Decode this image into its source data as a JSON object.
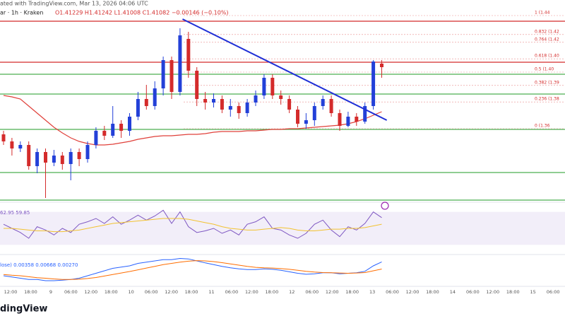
{
  "header": {
    "line1": "ated with TradingView.com, Mar 13, 2026 04:06 UTC",
    "symbol": "ar · 1h · Kraken",
    "ohlc": "O1.41229 H1.41242 L1.41008 C1.41082 −0.00146 (−0.10%)",
    "logo": "dingView"
  },
  "chart_data": {
    "type": "candlestick",
    "ylim": [
      1.306,
      1.451
    ],
    "up_color": "#2340d8",
    "down_color": "#d42b2b",
    "candles": {
      "open": [
        1.356,
        1.351,
        1.346,
        1.3485,
        1.3335,
        1.3435,
        1.336,
        1.341,
        1.335,
        1.3435,
        1.3385,
        1.3485,
        1.3585,
        1.355,
        1.3635,
        1.3585,
        1.3685,
        1.381,
        1.376,
        1.3885,
        1.4085,
        1.386,
        1.4235,
        1.401,
        1.381,
        1.3785,
        1.381,
        1.3735,
        1.376,
        1.371,
        1.3785,
        1.3835,
        1.396,
        1.3835,
        1.381,
        1.3735,
        1.3635,
        1.366,
        1.376,
        1.381,
        1.371,
        1.362,
        1.3685,
        1.365,
        1.376,
        1.406
      ],
      "high": [
        1.3585,
        1.3535,
        1.351,
        1.351,
        1.346,
        1.346,
        1.345,
        1.3435,
        1.346,
        1.346,
        1.351,
        1.361,
        1.362,
        1.376,
        1.366,
        1.371,
        1.386,
        1.391,
        1.3935,
        1.411,
        1.411,
        1.431,
        1.4285,
        1.4035,
        1.386,
        1.385,
        1.3835,
        1.381,
        1.3785,
        1.381,
        1.387,
        1.3985,
        1.3985,
        1.387,
        1.3835,
        1.376,
        1.371,
        1.3785,
        1.3835,
        1.3835,
        1.3735,
        1.372,
        1.371,
        1.3785,
        1.4085,
        1.4085
      ],
      "low": [
        1.3485,
        1.341,
        1.3435,
        1.331,
        1.3285,
        1.311,
        1.3335,
        1.331,
        1.3235,
        1.3335,
        1.336,
        1.346,
        1.352,
        1.3535,
        1.3535,
        1.355,
        1.366,
        1.3735,
        1.3735,
        1.3835,
        1.381,
        1.3835,
        1.396,
        1.376,
        1.3735,
        1.375,
        1.371,
        1.3685,
        1.367,
        1.3685,
        1.376,
        1.381,
        1.381,
        1.377,
        1.371,
        1.361,
        1.36,
        1.362,
        1.3735,
        1.3685,
        1.3585,
        1.361,
        1.362,
        1.3635,
        1.3735,
        1.396
      ],
      "close": [
        1.351,
        1.346,
        1.3485,
        1.3335,
        1.3435,
        1.336,
        1.341,
        1.335,
        1.3435,
        1.3385,
        1.3485,
        1.3585,
        1.355,
        1.3635,
        1.3585,
        1.3685,
        1.381,
        1.376,
        1.3885,
        1.4085,
        1.386,
        1.426,
        1.401,
        1.381,
        1.3785,
        1.381,
        1.3735,
        1.376,
        1.371,
        1.3785,
        1.3835,
        1.396,
        1.3835,
        1.381,
        1.3735,
        1.3635,
        1.366,
        1.376,
        1.381,
        1.371,
        1.362,
        1.3685,
        1.365,
        1.376,
        1.4075,
        1.4035
      ]
    },
    "ma": {
      "color": "#e0403a",
      "values": [
        1.3835,
        1.3825,
        1.381,
        1.376,
        1.371,
        1.366,
        1.361,
        1.357,
        1.3535,
        1.351,
        1.3495,
        1.3485,
        1.3485,
        1.349,
        1.35,
        1.351,
        1.3525,
        1.3535,
        1.3545,
        1.355,
        1.355,
        1.3555,
        1.356,
        1.356,
        1.3565,
        1.3575,
        1.358,
        1.358,
        1.358,
        1.3585,
        1.3585,
        1.359,
        1.3595,
        1.3595,
        1.36,
        1.36,
        1.3605,
        1.361,
        1.3615,
        1.362,
        1.3625,
        1.3635,
        1.365,
        1.367,
        1.3695,
        1.372
      ]
    },
    "levels": [
      {
        "value": 1.436,
        "color": "#d42b2b"
      },
      {
        "value": 1.407,
        "color": "#d42b2b"
      },
      {
        "value": 1.3985,
        "color": "#4caf50"
      },
      {
        "value": 1.3845,
        "color": "#4caf50"
      },
      {
        "value": 1.3595,
        "color": "#4caf50"
      },
      {
        "value": 1.329,
        "color": "#4caf50"
      },
      {
        "value": 1.3095,
        "color": "#4caf50"
      }
    ],
    "fib": [
      {
        "value": 1.44,
        "label": "1 (1.44"
      },
      {
        "value": 1.4266,
        "label": "0.832 (1.42"
      },
      {
        "value": 1.4211,
        "label": "0.764 (1.42"
      },
      {
        "value": 1.4094,
        "label": "0.618 (1.40"
      },
      {
        "value": 1.4,
        "label": "0.5 (1.40"
      },
      {
        "value": 1.3906,
        "label": "0.382 (1.39"
      },
      {
        "value": 1.3789,
        "label": "0.236 (1.38"
      },
      {
        "value": 1.36,
        "label": "0 (1.36"
      }
    ],
    "trendline": {
      "color": "#1f2fd6",
      "x": [
        21.3,
        45.6
      ],
      "y": [
        1.4375,
        1.366
      ]
    },
    "rsi": {
      "label": "62.95  59.85",
      "ylim": [
        20,
        80
      ],
      "band": [
        30,
        70
      ],
      "series": [
        {
          "color": "#7e57c2",
          "values": [
            55,
            50,
            45,
            38,
            52,
            48,
            42,
            50,
            45,
            55,
            58,
            62,
            56,
            64,
            55,
            60,
            66,
            60,
            65,
            72,
            56,
            70,
            52,
            45,
            47,
            50,
            44,
            48,
            42,
            55,
            58,
            64,
            50,
            48,
            42,
            38,
            44,
            55,
            60,
            48,
            40,
            52,
            48,
            56,
            70,
            63
          ]
        },
        {
          "color": "#f2c230",
          "values": [
            50,
            50,
            49,
            48,
            47,
            47,
            46,
            46,
            47,
            48,
            50,
            52,
            54,
            56,
            57,
            58,
            59,
            60,
            61,
            62,
            62,
            62,
            61,
            59,
            57,
            55,
            52,
            50,
            49,
            48,
            48,
            49,
            50,
            51,
            50,
            48,
            47,
            47,
            48,
            49,
            49,
            50,
            50,
            51,
            53,
            55
          ]
        }
      ]
    },
    "macd": {
      "label": "lose)  0.00358  0.00668  0.00270",
      "ylim": [
        -0.006,
        0.006
      ],
      "series": [
        {
          "color": "#2962ff",
          "values": [
            -0.002,
            -0.0025,
            -0.003,
            -0.0035,
            -0.0035,
            -0.004,
            -0.004,
            -0.0038,
            -0.0035,
            -0.003,
            -0.002,
            -0.001,
            0,
            0.001,
            0.0015,
            0.002,
            0.003,
            0.0035,
            0.004,
            0.0045,
            0.0045,
            0.005,
            0.0048,
            0.004,
            0.0032,
            0.0025,
            0.0018,
            0.0012,
            0.0008,
            0.0005,
            0.0005,
            0.0008,
            0.0006,
            0.0002,
            -0.0004,
            -0.001,
            -0.0014,
            -0.0012,
            -0.0008,
            -0.0008,
            -0.0012,
            -0.001,
            -0.0008,
            -0.0002,
            0.002,
            0.0036
          ]
        },
        {
          "color": "#ff6d00",
          "values": [
            -0.0015,
            -0.0018,
            -0.002,
            -0.0024,
            -0.0028,
            -0.003,
            -0.0033,
            -0.0035,
            -0.0035,
            -0.0034,
            -0.0031,
            -0.0027,
            -0.0021,
            -0.0015,
            -0.0009,
            -0.0003,
            0.0004,
            0.0011,
            0.0018,
            0.0025,
            0.003,
            0.0035,
            0.0039,
            0.0041,
            0.004,
            0.0037,
            0.0033,
            0.0028,
            0.0023,
            0.0018,
            0.0014,
            0.0012,
            0.0011,
            0.0009,
            0.0006,
            0.0002,
            -0.0002,
            -0.0005,
            -0.0007,
            -0.0008,
            -0.0009,
            -0.001,
            -0.0009,
            -0.0007,
            0,
            0.0007
          ]
        }
      ]
    },
    "x_labels": [
      "12:00",
      "18:00",
      "9",
      "06:00",
      "12:00",
      "18:00",
      "10",
      "06:00",
      "12:00",
      "18:00",
      "11",
      "06:00",
      "12:00",
      "18:00",
      "12",
      "06:00",
      "12:00",
      "18:00",
      "13",
      "06:00",
      "12:00",
      "18:00",
      "14",
      "06:00",
      "12:00",
      "18:00",
      "15",
      "06:00"
    ]
  }
}
